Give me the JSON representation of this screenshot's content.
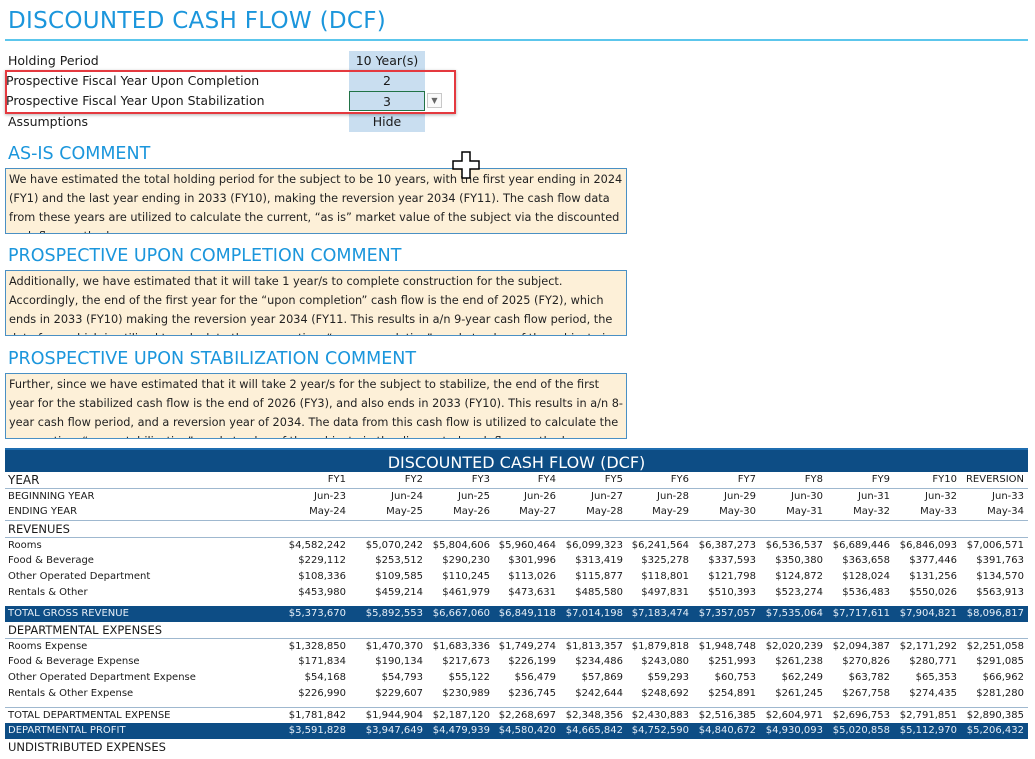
{
  "title": "DISCOUNTED CASH FLOW (DCF)",
  "params": [
    {
      "label": "Holding Period",
      "value": "10 Year(s)"
    },
    {
      "label": "Prospective Fiscal Year Upon Completion",
      "value": "2"
    },
    {
      "label": "Prospective Fiscal Year Upon Stabilization",
      "value": "3"
    },
    {
      "label": "Assumptions",
      "value": "Hide"
    }
  ],
  "comments": [
    {
      "heading": "AS-IS COMMENT",
      "text": "We have estimated the total holding period for the subject to be 10 years, with the first year ending in 2024 (FY1) and the last year ending in 2033 (FY10), making the reversion year 2034 (FY11). The cash flow data from these years are utilized to calculate the current, “as is” market value of the subject via the discounted cash flow method."
    },
    {
      "heading": "PROSPECTIVE UPON COMPLETION COMMENT",
      "text": "Additionally, we have estimated that it will take 1 year/s to complete construction for the subject. Accordingly, the end of the first year for the “upon completion” cash flow is the end of 2025 (FY2), which ends in 2033 (FY10) making the reversion year 2034 (FY11. This results in a/n 9-year cash flow period, the data from which is utilized to calculate the prospective, “upon completion” market value of the subject via the discounted cash flow method."
    },
    {
      "heading": "PROSPECTIVE UPON STABILIZATION COMMENT",
      "text": "Further, since we have estimated that it will take 2 year/s for the subject to stabilize, the end of the first year for the stabilized cash flow is the end of 2026 (FY3), and also ends in 2033 (FY10). This results in a/n 8-year cash flow period, and a reversion year of 2034. The data from this cash flow is utilized to calculate the prospective, “upon stabilization” market value of the subject via the discounted cash flow method."
    }
  ],
  "table": {
    "title": "DISCOUNTED CASH FLOW (DCF)",
    "rows": [
      {
        "type": "yr",
        "label": "YEAR",
        "cells": [
          "FY1",
          "FY2",
          "FY3",
          "FY4",
          "FY5",
          "FY6",
          "FY7",
          "FY8",
          "FY9",
          "FY10",
          "REVERSION"
        ]
      },
      {
        "type": "bt",
        "label": "BEGINNING YEAR",
        "cells": [
          "Jun-23",
          "Jun-24",
          "Jun-25",
          "Jun-26",
          "Jun-27",
          "Jun-28",
          "Jun-29",
          "Jun-30",
          "Jun-31",
          "Jun-32",
          "Jun-33"
        ]
      },
      {
        "type": "",
        "label": "ENDING YEAR",
        "cells": [
          "May-24",
          "May-25",
          "May-26",
          "May-27",
          "May-28",
          "May-29",
          "May-30",
          "May-31",
          "May-32",
          "May-33",
          "May-34"
        ]
      },
      {
        "type": "sec bt",
        "label": "REVENUES",
        "cells": []
      },
      {
        "type": "bt",
        "label": "Rooms",
        "cells": [
          "$4,582,242",
          "$5,070,242",
          "$5,804,606",
          "$5,960,464",
          "$6,099,323",
          "$6,241,564",
          "$6,387,273",
          "$6,536,537",
          "$6,689,446",
          "$6,846,093",
          "$7,006,571"
        ]
      },
      {
        "type": "",
        "label": "Food & Beverage",
        "cells": [
          "$229,112",
          "$253,512",
          "$290,230",
          "$301,996",
          "$313,419",
          "$325,278",
          "$337,593",
          "$350,380",
          "$363,658",
          "$377,446",
          "$391,763"
        ]
      },
      {
        "type": "",
        "label": "Other Operated Department",
        "cells": [
          "$108,336",
          "$109,585",
          "$110,245",
          "$113,026",
          "$115,877",
          "$118,801",
          "$121,798",
          "$124,872",
          "$128,024",
          "$131,256",
          "$134,570"
        ]
      },
      {
        "type": "",
        "label": "Rentals & Other",
        "cells": [
          "$453,980",
          "$459,214",
          "$461,979",
          "$473,631",
          "$485,580",
          "$497,831",
          "$510,393",
          "$523,274",
          "$536,483",
          "$550,026",
          "$563,913"
        ]
      },
      {
        "type": "spacer",
        "label": "",
        "cells": []
      },
      {
        "type": "dark",
        "label": "TOTAL GROSS REVENUE",
        "cells": [
          "$5,373,670",
          "$5,892,553",
          "$6,667,060",
          "$6,849,118",
          "$7,014,198",
          "$7,183,474",
          "$7,357,057",
          "$7,535,064",
          "$7,717,611",
          "$7,904,821",
          "$8,096,817"
        ]
      },
      {
        "type": "sec",
        "label": "DEPARTMENTAL EXPENSES",
        "cells": []
      },
      {
        "type": "bt",
        "label": "Rooms Expense",
        "cells": [
          "$1,328,850",
          "$1,470,370",
          "$1,683,336",
          "$1,749,274",
          "$1,813,357",
          "$1,879,818",
          "$1,948,748",
          "$2,020,239",
          "$2,094,387",
          "$2,171,292",
          "$2,251,058"
        ]
      },
      {
        "type": "",
        "label": "Food & Beverage Expense",
        "cells": [
          "$171,834",
          "$190,134",
          "$217,673",
          "$226,199",
          "$234,486",
          "$243,080",
          "$251,993",
          "$261,238",
          "$270,826",
          "$280,771",
          "$291,085"
        ]
      },
      {
        "type": "",
        "label": "Other Operated Department Expense",
        "cells": [
          "$54,168",
          "$54,793",
          "$55,122",
          "$56,479",
          "$57,869",
          "$59,293",
          "$60,753",
          "$62,249",
          "$63,782",
          "$65,353",
          "$66,962"
        ]
      },
      {
        "type": "",
        "label": "Rentals & Other Expense",
        "cells": [
          "$226,990",
          "$229,607",
          "$230,989",
          "$236,745",
          "$242,644",
          "$248,692",
          "$254,891",
          "$261,245",
          "$267,758",
          "$274,435",
          "$281,280"
        ]
      },
      {
        "type": "spacer",
        "label": "",
        "cells": []
      },
      {
        "type": "bt",
        "label": "TOTAL DEPARTMENTAL EXPENSE",
        "cells": [
          "$1,781,842",
          "$1,944,904",
          "$2,187,120",
          "$2,268,697",
          "$2,348,356",
          "$2,430,883",
          "$2,516,385",
          "$2,604,971",
          "$2,696,753",
          "$2,791,851",
          "$2,890,385"
        ]
      },
      {
        "type": "dark",
        "label": "DEPARTMENTAL PROFIT",
        "cells": [
          "$3,591,828",
          "$3,947,649",
          "$4,479,939",
          "$4,580,420",
          "$4,665,842",
          "$4,752,590",
          "$4,840,672",
          "$4,930,093",
          "$5,020,858",
          "$5,112,970",
          "$5,206,432"
        ]
      },
      {
        "type": "sec",
        "label": "UNDISTRIBUTED EXPENSES",
        "cells": []
      }
    ]
  }
}
